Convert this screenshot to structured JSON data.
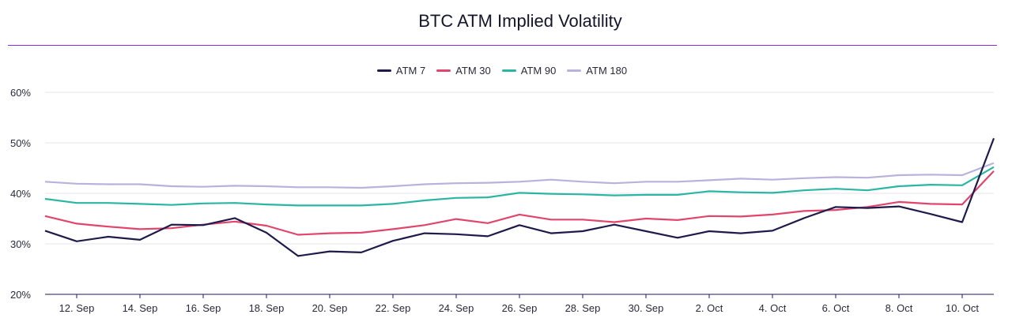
{
  "chart_data": {
    "type": "line",
    "title": "BTC ATM Implied Volatility",
    "xlabel": "",
    "ylabel": "",
    "ylim": [
      20,
      60
    ],
    "yticks": [
      "20%",
      "30%",
      "40%",
      "50%",
      "60%"
    ],
    "x": [
      "11. Sep",
      "12. Sep",
      "13. Sep",
      "14. Sep",
      "15. Sep",
      "16. Sep",
      "17. Sep",
      "18. Sep",
      "19. Sep",
      "20. Sep",
      "21. Sep",
      "22. Sep",
      "23. Sep",
      "24. Sep",
      "25. Sep",
      "26. Sep",
      "27. Sep",
      "28. Sep",
      "29. Sep",
      "30. Sep",
      "1. Oct",
      "2. Oct",
      "3. Oct",
      "4. Oct",
      "5. Oct",
      "6. Oct",
      "7. Oct",
      "8. Oct",
      "9. Oct",
      "10. Oct",
      "11. Oct"
    ],
    "xticks": [
      "12. Sep",
      "14. Sep",
      "16. Sep",
      "18. Sep",
      "20. Sep",
      "22. Sep",
      "24. Sep",
      "26. Sep",
      "28. Sep",
      "30. Sep",
      "2. Oct",
      "4. Oct",
      "6. Oct",
      "8. Oct",
      "10. Oct"
    ],
    "grid": true,
    "legend_position": "top-center",
    "series": [
      {
        "name": "ATM 7",
        "color": "#1e1b4b",
        "values": [
          32.6,
          30.5,
          31.4,
          30.8,
          33.8,
          33.7,
          35.1,
          32.2,
          27.6,
          28.5,
          28.3,
          30.6,
          32.1,
          31.9,
          31.5,
          33.7,
          32.1,
          32.5,
          33.8,
          32.5,
          31.2,
          32.5,
          32.1,
          32.6,
          35.1,
          37.3,
          37.1,
          37.4,
          35.9,
          34.3,
          50.9
        ]
      },
      {
        "name": "ATM 30",
        "color": "#e2456b",
        "values": [
          35.5,
          34.0,
          33.4,
          32.9,
          33.1,
          33.8,
          34.4,
          33.6,
          31.8,
          32.1,
          32.2,
          32.9,
          33.7,
          34.9,
          34.1,
          35.8,
          34.8,
          34.8,
          34.3,
          35.0,
          34.7,
          35.5,
          35.4,
          35.8,
          36.5,
          36.7,
          37.3,
          38.3,
          37.9,
          37.8,
          44.4
        ]
      },
      {
        "name": "ATM 90",
        "color": "#2bb5a3",
        "values": [
          38.9,
          38.1,
          38.1,
          37.9,
          37.7,
          38.0,
          38.1,
          37.8,
          37.6,
          37.6,
          37.6,
          37.9,
          38.6,
          39.1,
          39.2,
          40.1,
          39.9,
          39.8,
          39.6,
          39.7,
          39.7,
          40.4,
          40.2,
          40.1,
          40.6,
          40.9,
          40.6,
          41.4,
          41.7,
          41.6,
          45.2
        ]
      },
      {
        "name": "ATM 180",
        "color": "#b8b2dc",
        "values": [
          42.3,
          41.9,
          41.8,
          41.8,
          41.4,
          41.3,
          41.5,
          41.4,
          41.2,
          41.2,
          41.1,
          41.4,
          41.8,
          42.0,
          42.1,
          42.3,
          42.7,
          42.3,
          42.0,
          42.3,
          42.3,
          42.6,
          42.9,
          42.7,
          43.0,
          43.2,
          43.1,
          43.6,
          43.7,
          43.6,
          46.0
        ]
      }
    ]
  }
}
